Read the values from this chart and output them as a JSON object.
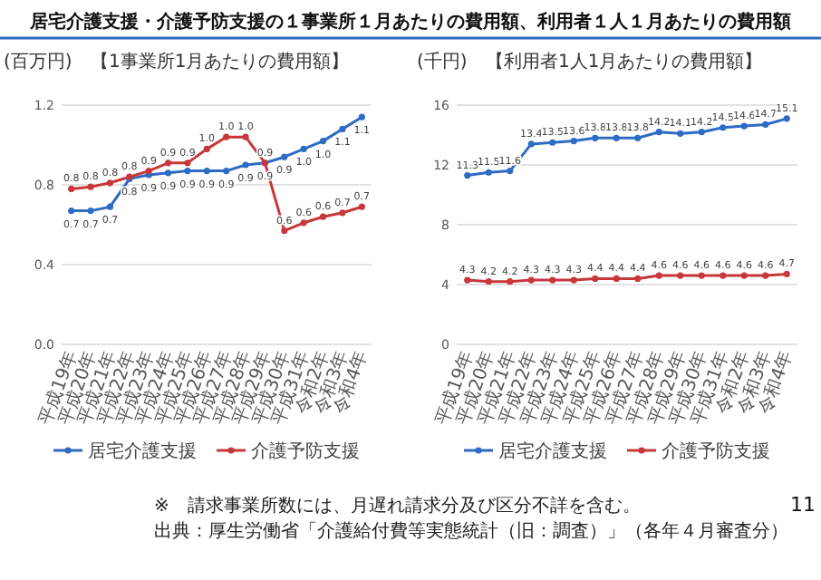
{
  "chart_data": [
    {
      "type": "line",
      "title": "居宅介護支援・介護予防支援の１事業所１月あたりの費用額、利用者１人１月あたりの費用額",
      "subtitle": "【1事業所1月あたりの費用額】",
      "ylabel": "(百万円)",
      "categories": [
        "平成19年",
        "平成20年",
        "平成21年",
        "平成22年",
        "平成23年",
        "平成24年",
        "平成25年",
        "平成26年",
        "平成27年",
        "平成28年",
        "平成29年",
        "平成30年",
        "平成31年",
        "令和2年",
        "令和3年",
        "令和4年"
      ],
      "series": [
        {
          "name": "居宅介護支援",
          "color": "#2e6bc4",
          "values": [
            0.67,
            0.67,
            0.69,
            0.83,
            0.85,
            0.86,
            0.87,
            0.87,
            0.87,
            0.9,
            0.91,
            0.94,
            0.98,
            1.02,
            1.08,
            1.14
          ],
          "value_labels": [
            "0.7",
            "0.7",
            "0.7",
            "0.8",
            "0.9",
            "0.9",
            "0.9",
            "0.9",
            "0.9",
            "0.9",
            "0.9",
            "0.9",
            "1.0",
            "1.0",
            "1.1",
            "1.1"
          ]
        },
        {
          "name": "介護予防支援",
          "color": "#c8373b",
          "values": [
            0.78,
            0.79,
            0.81,
            0.84,
            0.87,
            0.91,
            0.91,
            0.98,
            1.04,
            1.04,
            0.91,
            0.57,
            0.61,
            0.64,
            0.66,
            0.69
          ],
          "value_labels": [
            "0.8",
            "0.8",
            "0.8",
            "0.8",
            "0.9",
            "0.9",
            "0.9",
            "1.0",
            "1.0",
            "1.0",
            "0.9",
            "0.6",
            "0.6",
            "0.6",
            "0.7",
            "0.7"
          ]
        }
      ],
      "ylim": [
        0,
        1.2
      ],
      "yticks": [
        {
          "value": 0,
          "label": "0.0"
        },
        0.4,
        0.8,
        1.2
      ],
      "grid": "y",
      "legend": "bottom",
      "marker": "circle"
    },
    {
      "type": "line",
      "subtitle": "【利用者1人1月あたりの費用額】",
      "ylabel": "(千円)",
      "categories": [
        "平成19年",
        "平成20年",
        "平成21年",
        "平成22年",
        "平成23年",
        "平成24年",
        "平成25年",
        "平成26年",
        "平成27年",
        "平成28年",
        "平成29年",
        "平成30年",
        "平成31年",
        "令和2年",
        "令和3年",
        "令和4年"
      ],
      "series": [
        {
          "name": "居宅介護支援",
          "color": "#2e6bc4",
          "values": [
            11.3,
            11.5,
            11.6,
            13.4,
            13.5,
            13.6,
            13.8,
            13.8,
            13.8,
            14.2,
            14.1,
            14.2,
            14.5,
            14.6,
            14.7,
            15.1
          ]
        },
        {
          "name": "介護予防支援",
          "color": "#c8373b",
          "values": [
            4.3,
            4.2,
            4.2,
            4.3,
            4.3,
            4.3,
            4.4,
            4.4,
            4.4,
            4.6,
            4.6,
            4.6,
            4.6,
            4.6,
            4.6,
            4.7
          ]
        }
      ],
      "ylim": [
        0,
        16
      ],
      "yticks": [
        0,
        4,
        8,
        12,
        16
      ],
      "grid": "y",
      "legend": "bottom",
      "marker": "circle",
      "data_labels": true,
      "annotations": [
        "※　請求事業所数には、月遅れ請求分及び区分不詳を含む。",
        "出典：厚生労働省「介護給付費等実態統計（旧：調査）」（各年４月審査分）",
        "11"
      ]
    }
  ]
}
